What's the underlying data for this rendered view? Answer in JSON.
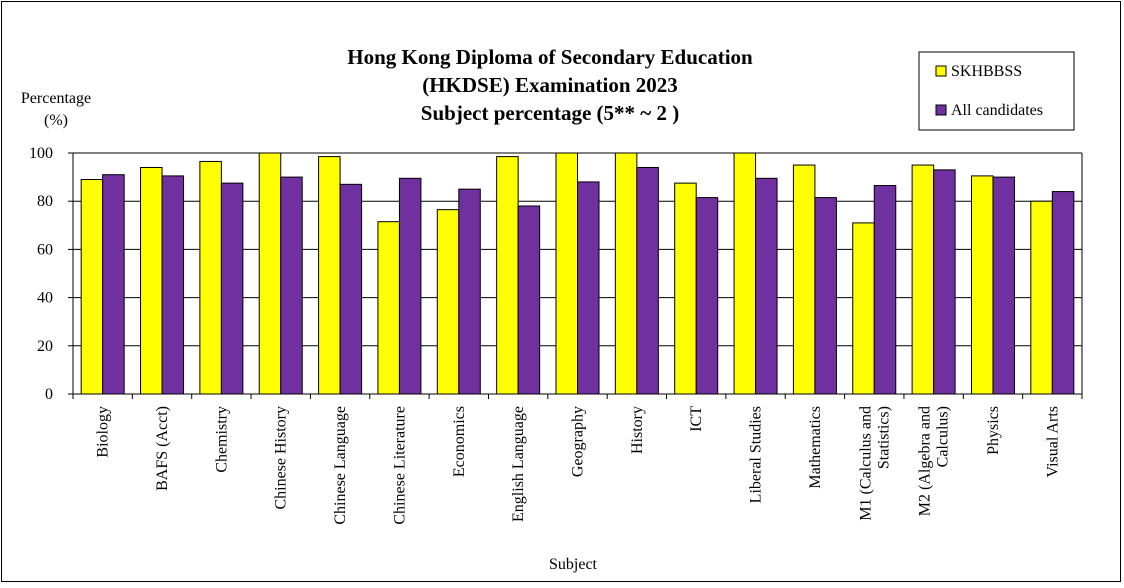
{
  "chart_data": {
    "type": "bar",
    "title": [
      "Hong Kong Diploma of Secondary Education",
      "(HKDSE) Examination 2023",
      "Subject percentage (5** ~ 2 )"
    ],
    "ylabel": [
      "Percentage",
      "(%)"
    ],
    "xlabel": "Subject",
    "ylim": [
      0,
      100
    ],
    "yticks": [
      0,
      20,
      40,
      60,
      80,
      100
    ],
    "grid": true,
    "legend_position": "top-right",
    "categories": [
      [
        "Biology"
      ],
      [
        "BAFS (Acct)"
      ],
      [
        "Chemistry"
      ],
      [
        "Chinese History"
      ],
      [
        "Chinese Language"
      ],
      [
        "Chinese Literature"
      ],
      [
        "Economics"
      ],
      [
        "English Language"
      ],
      [
        "Geography"
      ],
      [
        "History"
      ],
      [
        "ICT"
      ],
      [
        "Liberal Studies"
      ],
      [
        "Mathematics"
      ],
      [
        "M1 (Calculus and",
        "Statistics)"
      ],
      [
        "M2 (Algebra and",
        "Calculus)"
      ],
      [
        "Physics"
      ],
      [
        "Visual Arts"
      ]
    ],
    "series": [
      {
        "name": "SKHBBSS",
        "color": "#FFFF00",
        "values": [
          89,
          94,
          96.5,
          100,
          98.5,
          71.5,
          76.5,
          98.5,
          100,
          100,
          87.5,
          100,
          95,
          71,
          95,
          90.5,
          80
        ]
      },
      {
        "name": "All candidates",
        "color": "#7030A0",
        "values": [
          91,
          90.5,
          87.5,
          90,
          87,
          89.5,
          85,
          78,
          88,
          94,
          81.5,
          89.5,
          81.5,
          86.5,
          93,
          90,
          84
        ]
      }
    ]
  }
}
